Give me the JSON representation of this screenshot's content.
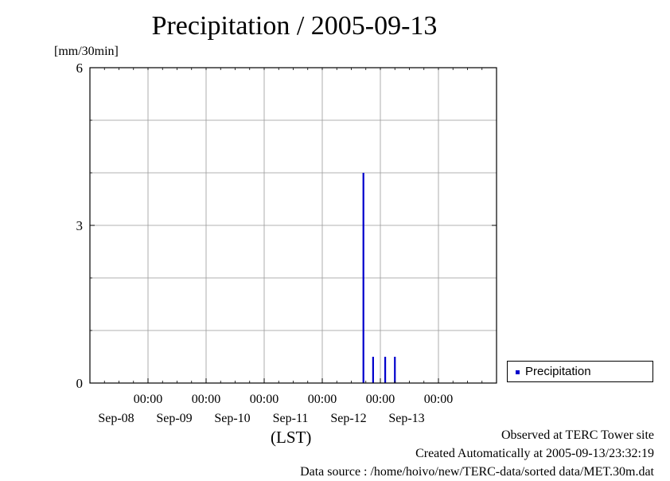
{
  "chart_data": {
    "type": "bar",
    "title": "Precipitation / 2005-09-13",
    "ylabel": "[mm/30min]",
    "xlabel": "(LST)",
    "ylim": [
      0,
      6
    ],
    "y_ticks": [
      "0",
      "3",
      "6"
    ],
    "x_range": [
      "2005-09-07T00:00",
      "2005-09-14T00:00"
    ],
    "x_ticks": [
      {
        "time": "00:00",
        "date": "Sep-08"
      },
      {
        "time": "00:00",
        "date": "Sep-09"
      },
      {
        "time": "00:00",
        "date": "Sep-10"
      },
      {
        "time": "00:00",
        "date": "Sep-11"
      },
      {
        "time": "00:00",
        "date": "Sep-12"
      },
      {
        "time": "00:00",
        "date": "Sep-13"
      }
    ],
    "grid": true,
    "legend": "right",
    "series": [
      {
        "name": "Precipitation",
        "color": "#0000cc",
        "points": [
          {
            "t": "2005-09-11T17:00",
            "v": 4.0
          },
          {
            "t": "2005-09-11T21:00",
            "v": 0.5
          },
          {
            "t": "2005-09-12T02:00",
            "v": 0.5
          },
          {
            "t": "2005-09-12T06:00",
            "v": 0.5
          }
        ]
      }
    ]
  },
  "notes": {
    "site": "Observed at TERC Tower site",
    "created": "Created Automatically at 2005-09-13/23:32:19",
    "source": "Data source : /home/hoivo/new/TERC-data/sorted  data/MET.30m.dat"
  }
}
